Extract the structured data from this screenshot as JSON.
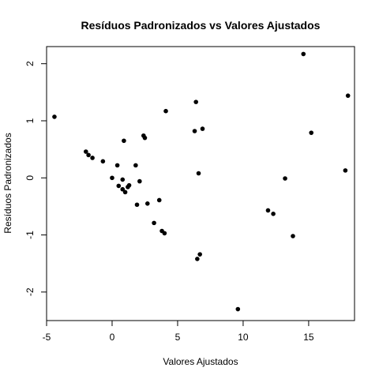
{
  "chart_data": {
    "type": "scatter",
    "title": "Resíduos Padronizados vs Valores Ajustados",
    "xlabel": "Valores Ajustados",
    "ylabel": "Resíduos Padronizados",
    "xlim": [
      -5,
      18.5
    ],
    "ylim": [
      -2.5,
      2.3
    ],
    "xticks": [
      -5,
      0,
      5,
      10,
      15
    ],
    "yticks": [
      -2,
      -1,
      0,
      1,
      2
    ],
    "grid": false,
    "points": [
      {
        "x": -4.4,
        "y": 1.07
      },
      {
        "x": -2.0,
        "y": 0.46
      },
      {
        "x": -1.8,
        "y": 0.4
      },
      {
        "x": -1.5,
        "y": 0.35
      },
      {
        "x": -0.7,
        "y": 0.29
      },
      {
        "x": 0.0,
        "y": 0.0
      },
      {
        "x": 0.4,
        "y": 0.22
      },
      {
        "x": 0.5,
        "y": -0.14
      },
      {
        "x": 0.8,
        "y": -0.03
      },
      {
        "x": 0.8,
        "y": -0.2
      },
      {
        "x": 0.9,
        "y": 0.65
      },
      {
        "x": 1.0,
        "y": -0.25
      },
      {
        "x": 1.2,
        "y": -0.16
      },
      {
        "x": 1.3,
        "y": -0.13
      },
      {
        "x": 1.8,
        "y": 0.22
      },
      {
        "x": 1.9,
        "y": -0.47
      },
      {
        "x": 2.1,
        "y": -0.06
      },
      {
        "x": 2.4,
        "y": 0.74
      },
      {
        "x": 2.5,
        "y": 0.7
      },
      {
        "x": 2.7,
        "y": -0.45
      },
      {
        "x": 3.2,
        "y": -0.79
      },
      {
        "x": 3.6,
        "y": -0.39
      },
      {
        "x": 3.8,
        "y": -0.93
      },
      {
        "x": 4.0,
        "y": -0.97
      },
      {
        "x": 4.1,
        "y": 1.17
      },
      {
        "x": 6.3,
        "y": 0.82
      },
      {
        "x": 6.4,
        "y": 1.33
      },
      {
        "x": 6.5,
        "y": -1.42
      },
      {
        "x": 6.6,
        "y": 0.08
      },
      {
        "x": 6.7,
        "y": -1.34
      },
      {
        "x": 6.9,
        "y": 0.86
      },
      {
        "x": 9.6,
        "y": -2.3
      },
      {
        "x": 11.9,
        "y": -0.57
      },
      {
        "x": 12.3,
        "y": -0.63
      },
      {
        "x": 13.2,
        "y": -0.01
      },
      {
        "x": 13.8,
        "y": -1.02
      },
      {
        "x": 14.6,
        "y": 2.17
      },
      {
        "x": 15.2,
        "y": 0.79
      },
      {
        "x": 17.8,
        "y": 0.13
      },
      {
        "x": 18.0,
        "y": 1.44
      }
    ]
  }
}
